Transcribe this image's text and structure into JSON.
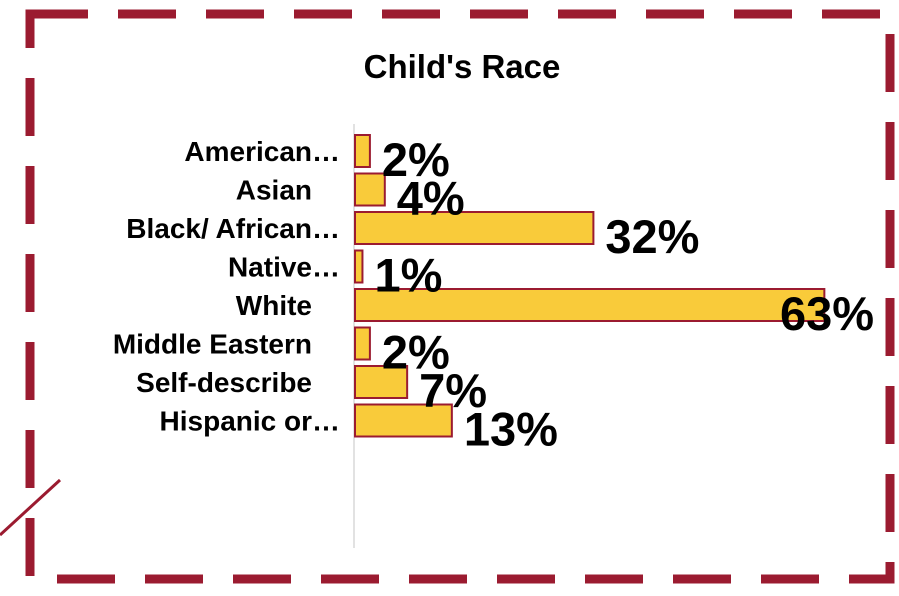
{
  "chart_data": {
    "type": "bar",
    "orientation": "horizontal",
    "title": "Child's Race",
    "categories": [
      "American…",
      "Asian",
      "Black/ African…",
      "Native…",
      "White",
      "Middle Eastern",
      "Self-describe",
      "Hispanic or…"
    ],
    "values": [
      2,
      4,
      32,
      1,
      63,
      2,
      7,
      13
    ],
    "value_labels": [
      "2%",
      "4%",
      "32%",
      "1%",
      "63%",
      "2%",
      "7%",
      "13%"
    ],
    "xlabel": "",
    "ylabel": "",
    "grid": false,
    "legend": "none"
  },
  "colors": {
    "bar_fill": "#F9CB3A",
    "bar_stroke": "#9B1B30",
    "frame_dash": "#9B1B30",
    "text": "#000000",
    "axis_line": "#D9D9D9"
  }
}
